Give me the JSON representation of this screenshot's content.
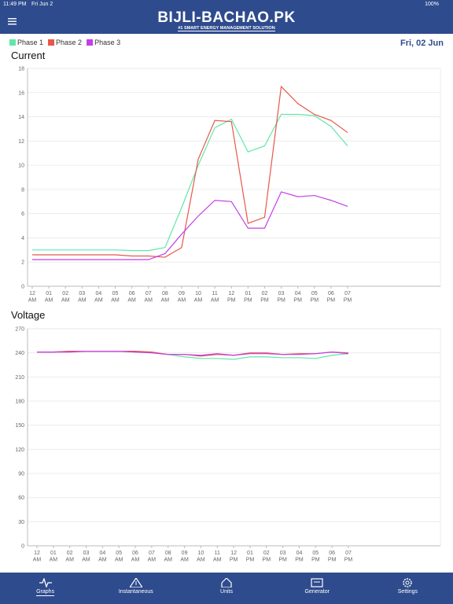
{
  "status_bar": {
    "time": "11:49 PM",
    "date": "Fri Jun 2",
    "battery": "100%"
  },
  "header": {
    "title": "BIJLI-BACHAO.PK",
    "subtitle": "#1 SMART ENERGY MANAGEMENT SOLUTION"
  },
  "date_label": "Fri, 02 Jun",
  "chart_data": [
    {
      "type": "line",
      "title": "Current",
      "categories": [
        "12 AM",
        "01 AM",
        "02 AM",
        "03 AM",
        "04 AM",
        "05 AM",
        "06 AM",
        "07 AM",
        "08 AM",
        "09 AM",
        "10 AM",
        "11 AM",
        "12 PM",
        "01 PM",
        "02 PM",
        "03 PM",
        "04 PM",
        "05 PM",
        "06 PM",
        "07 PM"
      ],
      "ylim": [
        0,
        18
      ],
      "yticks": [
        0,
        2,
        4,
        6,
        8,
        10,
        12,
        14,
        16,
        18
      ],
      "grid": true,
      "series": [
        {
          "name": "Phase 1",
          "color": "#5ee8a8",
          "values": [
            3.0,
            3.0,
            3.0,
            3.0,
            3.0,
            3.0,
            2.95,
            2.95,
            3.2,
            6.5,
            10.0,
            13.1,
            13.8,
            11.1,
            11.6,
            14.2,
            14.2,
            14.1,
            13.2,
            11.6
          ]
        },
        {
          "name": "Phase 2",
          "color": "#e8574a",
          "values": [
            2.6,
            2.6,
            2.6,
            2.6,
            2.6,
            2.6,
            2.5,
            2.5,
            2.4,
            3.2,
            10.5,
            13.7,
            13.6,
            5.2,
            5.7,
            16.5,
            15.1,
            14.2,
            13.7,
            12.7
          ]
        },
        {
          "name": "Phase 3",
          "color": "#c43ee8",
          "values": [
            2.2,
            2.2,
            2.2,
            2.2,
            2.2,
            2.2,
            2.2,
            2.2,
            2.7,
            4.3,
            5.8,
            7.1,
            7.0,
            4.8,
            4.8,
            7.8,
            7.4,
            7.5,
            7.1,
            6.6
          ]
        }
      ]
    },
    {
      "type": "line",
      "title": "Voltage",
      "categories": [
        "12 AM",
        "01 AM",
        "02 AM",
        "03 AM",
        "04 AM",
        "05 AM",
        "06 AM",
        "07 AM",
        "08 AM",
        "09 AM",
        "10 AM",
        "11 AM",
        "12 PM",
        "01 PM",
        "02 PM",
        "03 PM",
        "04 PM",
        "05 PM",
        "06 PM",
        "07 PM"
      ],
      "ylim": [
        0,
        270
      ],
      "yticks": [
        0,
        30,
        60,
        90,
        120,
        150,
        180,
        210,
        240,
        270
      ],
      "grid": true,
      "series": [
        {
          "values": [
            241,
            241,
            242,
            242,
            242,
            242,
            241,
            240,
            238,
            235,
            233,
            233,
            232,
            235,
            235,
            234,
            234,
            233,
            237,
            239
          ]
        },
        {
          "values": [
            241,
            241,
            242,
            242,
            242,
            242,
            242,
            241,
            238,
            238,
            236,
            238,
            237,
            240,
            240,
            238,
            239,
            239,
            241,
            240
          ]
        },
        {
          "values": [
            241,
            241,
            241,
            242,
            242,
            242,
            241,
            240,
            238,
            238,
            237,
            239,
            237,
            239,
            239,
            238,
            238,
            239,
            241,
            239
          ]
        }
      ]
    }
  ],
  "tabs": [
    "Graphs",
    "Instantaneous",
    "Units",
    "Generator",
    "Settings"
  ]
}
